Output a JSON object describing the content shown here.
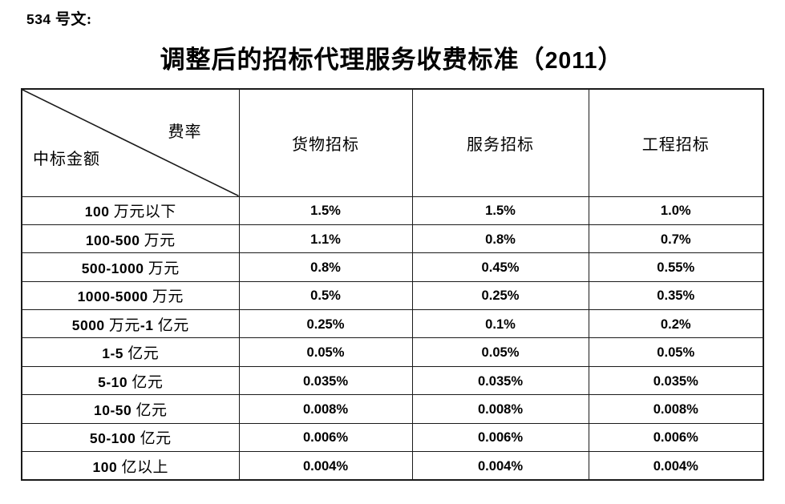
{
  "page": {
    "doc_label": "534 号文:",
    "title": "调整后的招标代理服务收费标准（2011）"
  },
  "table": {
    "corner": {
      "top_right": "费率",
      "bottom_left": "中标金额"
    },
    "columns": [
      "货物招标",
      "服务招标",
      "工程招标"
    ],
    "rows": [
      {
        "label": "100 万元以下",
        "values": [
          "1.5%",
          "1.5%",
          "1.0%"
        ]
      },
      {
        "label": "100-500 万元",
        "values": [
          "1.1%",
          "0.8%",
          "0.7%"
        ]
      },
      {
        "label": "500-1000 万元",
        "values": [
          "0.8%",
          "0.45%",
          "0.55%"
        ]
      },
      {
        "label": "1000-5000 万元",
        "values": [
          "0.5%",
          "0.25%",
          "0.35%"
        ]
      },
      {
        "label": "5000 万元-1 亿元",
        "values": [
          "0.25%",
          "0.1%",
          "0.2%"
        ]
      },
      {
        "label": "1-5 亿元",
        "values": [
          "0.05%",
          "0.05%",
          "0.05%"
        ]
      },
      {
        "label": "5-10 亿元",
        "values": [
          "0.035%",
          "0.035%",
          "0.035%"
        ]
      },
      {
        "label": "10-50 亿元",
        "values": [
          "0.008%",
          "0.008%",
          "0.008%"
        ]
      },
      {
        "label": "50-100 亿元",
        "values": [
          "0.006%",
          "0.006%",
          "0.006%"
        ]
      },
      {
        "label": "100 亿以上",
        "values": [
          "0.004%",
          "0.004%",
          "0.004%"
        ]
      }
    ]
  }
}
